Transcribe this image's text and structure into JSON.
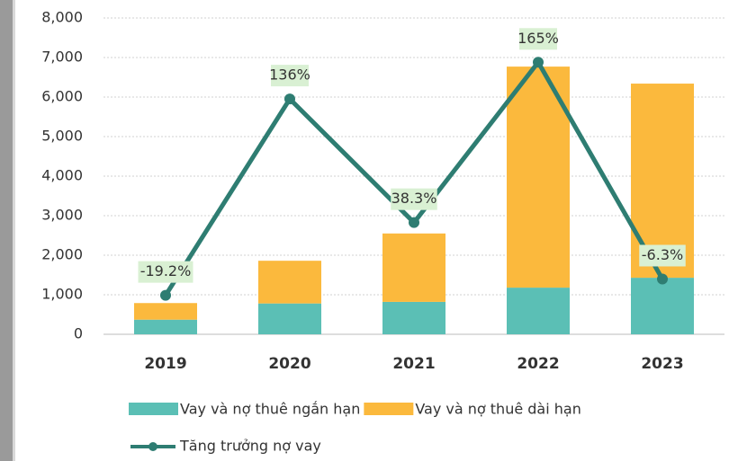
{
  "chart_data": {
    "type": "bar",
    "categories": [
      "2019",
      "2020",
      "2021",
      "2022",
      "2023"
    ],
    "stacked": true,
    "series": [
      {
        "name": "Vay và nợ thuê ngắn hạn",
        "color": "#5bbfb5",
        "values": [
          370,
          780,
          820,
          1180,
          1430
        ]
      },
      {
        "name": "Vay và nợ thuê dài hạn",
        "color": "#fbb93d",
        "values": [
          420,
          1080,
          1730,
          5590,
          4910
        ]
      },
      {
        "name": "Tăng trưởng nợ vay",
        "type": "line",
        "axis": "y2",
        "color": "#2e7d72",
        "values": [
          -19.2,
          136,
          38.3,
          165,
          -6.3
        ],
        "value_labels": [
          "-19.2%",
          "136%",
          "38.3%",
          "165%",
          "-6.3%"
        ]
      }
    ],
    "ylim": [
      0,
      8000
    ],
    "yticks": [
      0,
      {
        "value": 1000,
        "label": "1,000"
      },
      {
        "value": 2000,
        "label": "2,000"
      },
      {
        "value": 3000,
        "label": "3,000"
      },
      {
        "value": 4000,
        "label": "4,000"
      },
      {
        "value": 5000,
        "label": "5,000"
      },
      {
        "value": 6000,
        "label": "6,000"
      },
      {
        "value": 7000,
        "label": "7,000"
      },
      {
        "value": 8000,
        "label": "8,000"
      }
    ],
    "y2lim": [
      -50,
      200
    ],
    "grid": true,
    "legend": "bottom"
  }
}
